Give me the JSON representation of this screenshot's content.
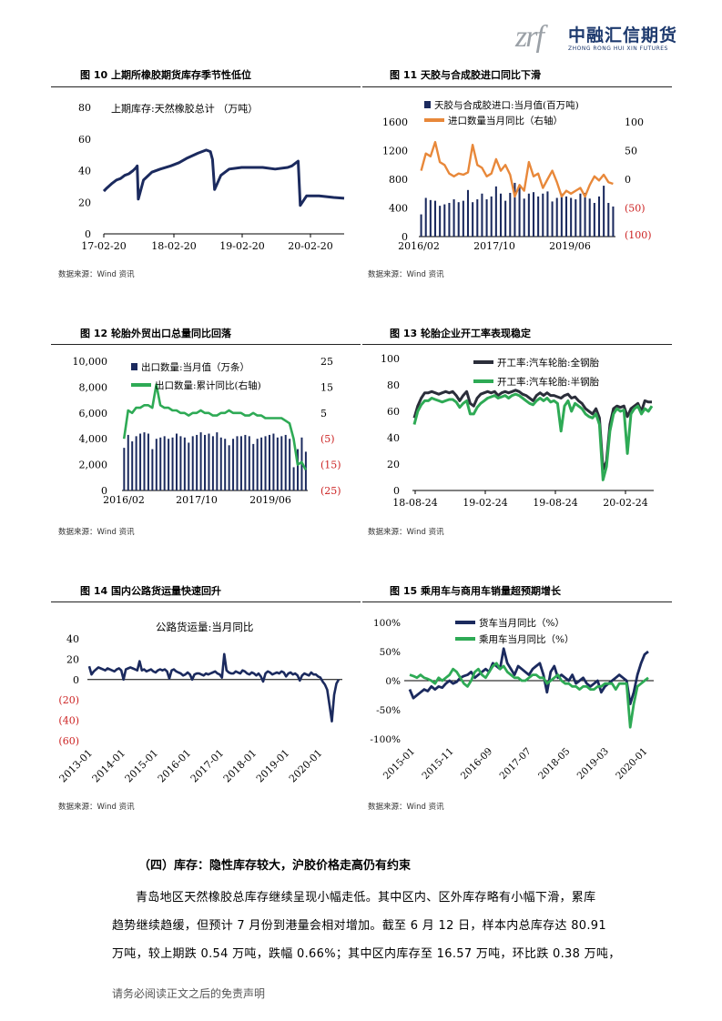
{
  "header": {
    "logo_mark": "zrf",
    "logo_cn": "中融汇信期货",
    "logo_en": "ZHONG RONG HUI XIN FUTURES"
  },
  "figures": [
    {
      "title": "图 10 上期所橡胶期货库存季节性低位",
      "source": "数据来源：Wind 资讯"
    },
    {
      "title": "图 11 天胶与合成胶进口同比下滑",
      "source": "数据来源：Wind 资讯"
    },
    {
      "title": "图 12 轮胎外贸出口总量同比回落",
      "source": "数据来源：Wind 资讯"
    },
    {
      "title": "图 13 轮胎企业开工率表现稳定",
      "source": "数据来源：Wind 资讯"
    },
    {
      "title": "图 14 国内公路货运量快速回升",
      "source": "数据来源：Wind 资讯"
    },
    {
      "title": "图 15 乘用车与商用车销量超预期增长",
      "source": "数据来源：Wind 资讯"
    }
  ],
  "chart_data": [
    {
      "type": "line",
      "legend": [
        "上期库存:天然橡胶总计 （万吨）"
      ],
      "x_ticks": [
        "17-02-20",
        "18-02-20",
        "19-02-20",
        "20-02-20"
      ],
      "y_ticks": [
        "0",
        "20",
        "40",
        "60",
        "80"
      ],
      "ylim": [
        0,
        80
      ],
      "color": "#1b2a5e",
      "series": [
        {
          "name": "上期库存:天然橡胶总计 （万吨）",
          "points": [
            [
              0,
              27
            ],
            [
              0.15,
              29
            ],
            [
              0.4,
              32
            ],
            [
              0.6,
              34
            ],
            [
              0.8,
              35
            ],
            [
              1.0,
              37
            ],
            [
              1.2,
              38
            ],
            [
              1.4,
              40
            ],
            [
              1.55,
              42
            ],
            [
              1.6,
              43
            ],
            [
              1.65,
              22
            ],
            [
              1.9,
              34
            ],
            [
              2.3,
              39
            ],
            [
              2.7,
              41
            ],
            [
              3.2,
              43
            ],
            [
              3.6,
              45
            ],
            [
              4.0,
              48
            ],
            [
              4.5,
              51
            ],
            [
              4.9,
              53
            ],
            [
              5.1,
              52
            ],
            [
              5.2,
              47
            ],
            [
              5.3,
              28
            ],
            [
              5.6,
              37
            ],
            [
              6.0,
              41
            ],
            [
              6.6,
              42
            ],
            [
              7.0,
              42
            ],
            [
              7.6,
              42
            ],
            [
              8.2,
              41
            ],
            [
              8.8,
              42
            ],
            [
              9.0,
              43
            ],
            [
              9.3,
              46
            ],
            [
              9.4,
              18
            ],
            [
              9.7,
              24
            ],
            [
              10.3,
              24
            ],
            [
              11.0,
              23
            ],
            [
              11.5,
              22.5
            ]
          ]
        }
      ]
    },
    {
      "type": "bar+line",
      "legend": [
        "天胶与合成胶进口:当月值(百万吨)",
        "进口数量当月同比（右轴）"
      ],
      "x_ticks": [
        "2016/02",
        "2017/10",
        "2019/06"
      ],
      "y_left_ticks": [
        "0",
        "400",
        "800",
        "1200",
        "1600"
      ],
      "y_right_ticks": [
        "100",
        "50",
        "0",
        "(50)",
        "(100)"
      ],
      "ylim_left": [
        0,
        1600
      ],
      "ylim_right": [
        -100,
        100
      ],
      "bars": [
        310,
        540,
        510,
        500,
        430,
        450,
        470,
        520,
        480,
        500,
        650,
        480,
        520,
        600,
        520,
        560,
        700,
        600,
        500,
        610,
        750,
        700,
        530,
        600,
        620,
        560,
        600,
        630,
        490,
        540,
        600,
        560,
        540,
        520,
        600,
        610,
        530,
        470,
        560,
        710,
        470,
        420
      ],
      "line": [
        15,
        45,
        40,
        65,
        30,
        25,
        10,
        5,
        10,
        8,
        12,
        60,
        25,
        20,
        5,
        10,
        35,
        15,
        25,
        8,
        -30,
        -10,
        -20,
        30,
        5,
        10,
        -15,
        0,
        15,
        -5,
        -30,
        -20,
        -25,
        -20,
        -15,
        -30,
        -10,
        5,
        -2,
        8,
        -5,
        -8
      ]
    },
    {
      "type": "bar+line",
      "legend": [
        "出口数量:当月值（万条）",
        "出口数量:累计同比(右轴)"
      ],
      "x_ticks": [
        "2016/02",
        "2017/10",
        "2019/06"
      ],
      "y_left_ticks": [
        "0",
        "2,000",
        "4,000",
        "6,000",
        "8,000",
        "10,000"
      ],
      "y_right_ticks": [
        "25",
        "15",
        "5",
        "(5)",
        "(15)",
        "(25)"
      ],
      "ylim_left": [
        0,
        10000
      ],
      "ylim_right": [
        -25,
        25
      ],
      "bars": [
        3300,
        4300,
        3800,
        4200,
        4400,
        4500,
        4400,
        3200,
        4000,
        4100,
        4200,
        4000,
        4100,
        4400,
        4200,
        4100,
        3700,
        4200,
        4300,
        4500,
        4300,
        4400,
        4200,
        4500,
        4100,
        4000,
        3500,
        4000,
        4200,
        4200,
        4300,
        4200,
        3600,
        4000,
        4100,
        4200,
        4300,
        4400,
        4100,
        4200,
        4300,
        4000,
        1800,
        3200,
        4100,
        3000
      ],
      "line": [
        -5,
        6,
        5,
        7,
        7,
        8,
        8,
        7,
        16,
        8,
        7,
        7,
        6,
        6,
        5,
        5,
        4,
        5,
        5,
        6,
        5,
        5,
        4,
        4,
        5,
        5,
        6,
        5,
        5,
        5,
        4,
        4,
        5,
        4,
        4,
        3,
        3,
        3,
        3,
        3,
        2,
        1,
        -5,
        -15,
        -14,
        -17
      ]
    },
    {
      "type": "line",
      "legend": [
        "开工率:汽车轮胎:全钢胎",
        "开工率:汽车轮胎:半钢胎"
      ],
      "x_ticks": [
        "18-08-24",
        "19-02-24",
        "19-08-24",
        "20-02-24"
      ],
      "y_ticks": [
        "0",
        "20",
        "40",
        "60",
        "80",
        "100"
      ],
      "ylim": [
        0,
        100
      ],
      "series": [
        {
          "name": "开工率:汽车轮胎:全钢胎",
          "color": "#2b2e3a",
          "values": [
            55,
            64,
            70,
            74,
            74,
            75,
            74,
            73,
            74,
            75,
            74,
            75,
            72,
            68,
            72,
            75,
            66,
            64,
            70,
            73,
            74,
            75,
            74,
            75,
            72,
            74,
            75,
            74,
            75,
            76,
            75,
            73,
            72,
            70,
            68,
            72,
            74,
            72,
            74,
            72,
            72,
            71,
            70,
            72,
            73,
            70,
            71,
            68,
            66,
            62,
            60,
            58,
            62,
            55,
            16,
            22,
            50,
            62,
            64,
            63,
            64,
            56,
            62,
            64,
            66,
            60,
            68,
            67,
            67
          ]
        },
        {
          "name": "开工率:汽车轮胎:半钢胎",
          "color": "#2eaa55",
          "values": [
            50,
            60,
            65,
            68,
            68,
            70,
            69,
            68,
            67,
            68,
            69,
            69,
            67,
            63,
            66,
            68,
            58,
            58,
            63,
            66,
            68,
            70,
            71,
            72,
            70,
            71,
            72,
            70,
            72,
            73,
            72,
            70,
            68,
            66,
            65,
            68,
            70,
            68,
            70,
            67,
            68,
            66,
            45,
            64,
            68,
            60,
            66,
            64,
            62,
            58,
            56,
            55,
            58,
            50,
            8,
            18,
            45,
            58,
            62,
            60,
            61,
            28,
            58,
            62,
            64,
            58,
            62,
            60,
            64
          ]
        }
      ]
    },
    {
      "type": "line",
      "legend": [
        "公路货运量:当月同比"
      ],
      "x_ticks": [
        "2013-01",
        "2014-01",
        "2015-01",
        "2016-01",
        "2017-01",
        "2018-01",
        "2019-01",
        "2020-01"
      ],
      "y_ticks": [
        "40",
        "20",
        "0",
        "(20)",
        "(40)",
        "(60)"
      ],
      "ylim": [
        -60,
        40
      ],
      "color": "#1b2a5e",
      "values": [
        13,
        5,
        8,
        10,
        12,
        11,
        10,
        9,
        11,
        10,
        9,
        8,
        10,
        11,
        9,
        0,
        10,
        11,
        12,
        11,
        10,
        9,
        18,
        9,
        10,
        8,
        9,
        10,
        8,
        7,
        9,
        10,
        9,
        10,
        8,
        1,
        9,
        10,
        8,
        7,
        6,
        4,
        5,
        7,
        5,
        0,
        5,
        6,
        6,
        5,
        4,
        6,
        5,
        6,
        7,
        8,
        6,
        5,
        2,
        25,
        9,
        7,
        6,
        6,
        8,
        7,
        6,
        9,
        8,
        6,
        5,
        7,
        6,
        4,
        6,
        3,
        -2,
        6,
        8,
        7,
        5,
        6,
        7,
        6,
        8,
        7,
        3,
        6,
        7,
        5,
        6,
        4,
        -1,
        4,
        6,
        5,
        4,
        7,
        5,
        5,
        3,
        2,
        -2,
        -5,
        -10,
        -25,
        -41,
        -15,
        -4,
        0
      ]
    },
    {
      "type": "line",
      "legend": [
        "货车当月同比（%）",
        "乘用车当月同比（%）"
      ],
      "x_ticks": [
        "2015-01",
        "2015-11",
        "2016-09",
        "2017-07",
        "2018-05",
        "2019-03",
        "2020-01"
      ],
      "y_ticks": [
        "100%",
        "50%",
        "0%",
        "-50%",
        "-100%"
      ],
      "ylim": [
        -100,
        100
      ],
      "series": [
        {
          "name": "货车当月同比（%）",
          "color": "#1b2a5e",
          "values": [
            -15,
            -30,
            -25,
            -20,
            -15,
            -18,
            -10,
            -15,
            -10,
            -12,
            -5,
            0,
            -5,
            -2,
            5,
            8,
            10,
            15,
            5,
            10,
            15,
            20,
            15,
            30,
            25,
            20,
            55,
            30,
            20,
            10,
            25,
            20,
            15,
            10,
            20,
            25,
            30,
            10,
            -20,
            15,
            25,
            5,
            10,
            5,
            0,
            10,
            -5,
            0,
            5,
            -5,
            -10,
            -5,
            0,
            -20,
            -10,
            -5,
            0,
            5,
            10,
            5,
            0,
            -40,
            -20,
            10,
            30,
            45,
            50
          ]
        },
        {
          "name": "乘用车当月同比（%）",
          "color": "#2eaa55",
          "values": [
            10,
            8,
            5,
            10,
            5,
            3,
            0,
            -5,
            5,
            0,
            5,
            10,
            20,
            15,
            5,
            -5,
            -10,
            0,
            15,
            20,
            10,
            5,
            15,
            25,
            30,
            20,
            25,
            15,
            10,
            5,
            5,
            0,
            0,
            5,
            10,
            10,
            5,
            5,
            -5,
            0,
            5,
            10,
            0,
            -5,
            -5,
            -10,
            -10,
            -15,
            -10,
            -10,
            -15,
            -15,
            -10,
            -10,
            -5,
            -5,
            -5,
            -15,
            -5,
            -5,
            -5,
            -80,
            -40,
            -10,
            -5,
            0,
            5
          ]
        }
      ]
    }
  ],
  "section": {
    "heading": "（四）库存：隐性库存较大，沪胶价格走高仍有约束",
    "lines": [
      "青岛地区天然橡胶总库存继续呈现小幅走低。其中区内、区外库存略有小幅下滑，累库",
      "趋势继续趋缓，但预计 7 月份到港量会相对增加。截至 6 月 12 日，样本内总库存达 80.91",
      "万吨，较上期跌 0.54 万吨，跌幅 0.66%；其中区内库存至 16.57 万吨，环比跌 0.38 万吨，"
    ]
  },
  "footer": "请务必阅读正文之后的免责声明"
}
